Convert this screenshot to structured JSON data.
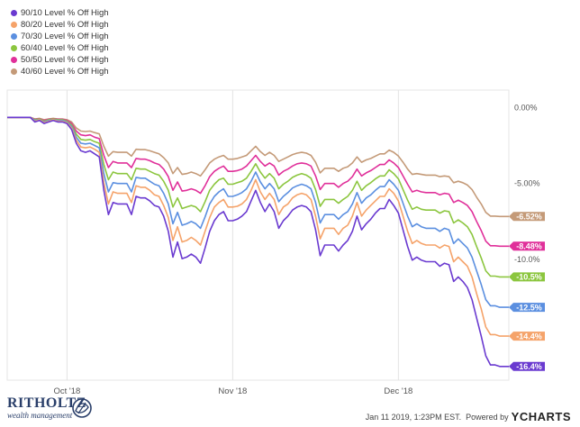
{
  "chart_data": {
    "type": "line",
    "x_ticks": [
      "Oct '18",
      "Nov '18",
      "Dec '18"
    ],
    "y_ticks": [
      "0.00%",
      "-5.00%",
      "-10.0%"
    ],
    "y_ticks_values": [
      0,
      -5,
      -10
    ],
    "ylim": [
      -17.3,
      1.8
    ],
    "grid": "vertical",
    "legend_placement": "top-left",
    "series": [
      {
        "name": "90/10 Level % Off High",
        "color": "#6a3ad0",
        "end_label": "-16.4%",
        "values": [
          0,
          0,
          0,
          0,
          0,
          0,
          -0.3,
          -0.2,
          -0.4,
          -0.3,
          -0.2,
          -0.3,
          -0.3,
          -0.4,
          -0.8,
          -1.7,
          -2.2,
          -2.3,
          -2.2,
          -2.4,
          -2.6,
          -4.8,
          -6.4,
          -5.6,
          -5.7,
          -5.7,
          -5.7,
          -6.4,
          -5.2,
          -5.3,
          -5.3,
          -5.5,
          -5.8,
          -5.9,
          -6.5,
          -7.5,
          -9.2,
          -8.2,
          -9.3,
          -9.2,
          -9.0,
          -9.2,
          -9.6,
          -8.6,
          -7.5,
          -6.8,
          -6.4,
          -6.2,
          -6.8,
          -6.8,
          -6.7,
          -6.5,
          -6.2,
          -5.5,
          -4.8,
          -5.6,
          -6.2,
          -5.7,
          -6.2,
          -7.3,
          -6.8,
          -6.5,
          -6.1,
          -5.9,
          -5.8,
          -5.9,
          -6.2,
          -7.4,
          -9.1,
          -8.4,
          -8.4,
          -8.4,
          -8.8,
          -8.4,
          -8.1,
          -7.5,
          -6.5,
          -7.4,
          -7.0,
          -6.7,
          -6.3,
          -6.0,
          -6.0,
          -5.4,
          -5.8,
          -6.3,
          -7.4,
          -8.5,
          -9.4,
          -9.2,
          -9.4,
          -9.5,
          -9.5,
          -9.5,
          -9.8,
          -9.6,
          -9.7,
          -10.8,
          -10.5,
          -10.8,
          -11.2,
          -12.0,
          -13.2,
          -14.4,
          -15.7,
          -16.3,
          -16.3,
          -16.4,
          -16.4,
          -16.4
        ]
      },
      {
        "name": "80/20 Level % Off High",
        "color": "#f5a36a",
        "end_label": "-14.4%",
        "values": [
          0,
          0,
          0,
          0,
          0,
          0,
          -0.25,
          -0.15,
          -0.35,
          -0.25,
          -0.15,
          -0.25,
          -0.25,
          -0.35,
          -0.7,
          -1.5,
          -1.95,
          -2.0,
          -1.95,
          -2.1,
          -2.3,
          -4.3,
          -5.7,
          -4.9,
          -5.0,
          -5.0,
          -5.0,
          -5.6,
          -4.5,
          -4.6,
          -4.6,
          -4.8,
          -5.1,
          -5.2,
          -5.8,
          -6.6,
          -8.1,
          -7.2,
          -8.2,
          -8.1,
          -7.9,
          -8.1,
          -8.4,
          -7.5,
          -6.6,
          -5.9,
          -5.6,
          -5.4,
          -5.9,
          -5.9,
          -5.85,
          -5.7,
          -5.4,
          -4.8,
          -4.1,
          -4.9,
          -5.4,
          -5.0,
          -5.4,
          -6.4,
          -5.9,
          -5.7,
          -5.3,
          -5.1,
          -5.0,
          -5.1,
          -5.4,
          -6.5,
          -8.0,
          -7.3,
          -7.3,
          -7.3,
          -7.7,
          -7.3,
          -7.1,
          -6.5,
          -5.6,
          -6.5,
          -6.1,
          -5.8,
          -5.5,
          -5.2,
          -5.2,
          -4.7,
          -5.0,
          -5.5,
          -6.5,
          -7.5,
          -8.3,
          -8.1,
          -8.3,
          -8.4,
          -8.4,
          -8.4,
          -8.6,
          -8.4,
          -8.5,
          -9.5,
          -9.2,
          -9.5,
          -9.8,
          -10.5,
          -11.6,
          -12.6,
          -13.8,
          -14.3,
          -14.3,
          -14.4,
          -14.4,
          -14.4
        ]
      },
      {
        "name": "70/30 Level % Off High",
        "color": "#5b8fe0",
        "end_label": "-12.5%",
        "values": [
          0,
          0,
          0,
          0,
          0,
          0,
          -0.2,
          -0.15,
          -0.3,
          -0.2,
          -0.15,
          -0.2,
          -0.2,
          -0.3,
          -0.6,
          -1.3,
          -1.7,
          -1.75,
          -1.7,
          -1.85,
          -2.0,
          -3.7,
          -4.9,
          -4.3,
          -4.35,
          -4.35,
          -4.35,
          -4.9,
          -3.95,
          -4.0,
          -4.0,
          -4.2,
          -4.4,
          -4.5,
          -5.0,
          -5.7,
          -7.0,
          -6.25,
          -7.1,
          -7.0,
          -6.85,
          -7.0,
          -7.3,
          -6.55,
          -5.7,
          -5.2,
          -4.9,
          -4.7,
          -5.2,
          -5.2,
          -5.1,
          -4.95,
          -4.7,
          -4.2,
          -3.6,
          -4.25,
          -4.7,
          -4.35,
          -4.7,
          -5.55,
          -5.2,
          -4.95,
          -4.65,
          -4.5,
          -4.4,
          -4.5,
          -4.7,
          -5.6,
          -6.95,
          -6.4,
          -6.4,
          -6.4,
          -6.7,
          -6.4,
          -6.2,
          -5.7,
          -4.95,
          -5.65,
          -5.3,
          -5.1,
          -4.8,
          -4.55,
          -4.55,
          -4.1,
          -4.4,
          -4.8,
          -5.65,
          -6.5,
          -7.2,
          -7.0,
          -7.2,
          -7.3,
          -7.3,
          -7.3,
          -7.5,
          -7.3,
          -7.4,
          -8.3,
          -8.0,
          -8.3,
          -8.6,
          -9.2,
          -10.1,
          -11.0,
          -12.0,
          -12.4,
          -12.4,
          -12.5,
          -12.5,
          -12.5
        ]
      },
      {
        "name": "60/40 Level % Off High",
        "color": "#8cc63f",
        "end_label": "-10.5%",
        "values": [
          0,
          0,
          0,
          0,
          0,
          0,
          -0.15,
          -0.1,
          -0.25,
          -0.15,
          -0.1,
          -0.15,
          -0.15,
          -0.25,
          -0.5,
          -1.1,
          -1.45,
          -1.5,
          -1.45,
          -1.6,
          -1.7,
          -3.1,
          -4.1,
          -3.6,
          -3.7,
          -3.7,
          -3.7,
          -4.1,
          -3.35,
          -3.4,
          -3.4,
          -3.55,
          -3.7,
          -3.8,
          -4.2,
          -4.8,
          -5.9,
          -5.3,
          -6.0,
          -5.9,
          -5.8,
          -5.9,
          -6.2,
          -5.55,
          -4.8,
          -4.4,
          -4.1,
          -4.0,
          -4.4,
          -4.4,
          -4.3,
          -4.2,
          -4.0,
          -3.55,
          -3.05,
          -3.6,
          -4.0,
          -3.7,
          -4.0,
          -4.7,
          -4.4,
          -4.2,
          -3.95,
          -3.8,
          -3.7,
          -3.8,
          -4.0,
          -4.75,
          -5.85,
          -5.4,
          -5.4,
          -5.4,
          -5.65,
          -5.4,
          -5.2,
          -4.8,
          -4.2,
          -4.8,
          -4.5,
          -4.3,
          -4.05,
          -3.85,
          -3.85,
          -3.45,
          -3.7,
          -4.05,
          -4.75,
          -5.45,
          -6.05,
          -5.9,
          -6.05,
          -6.1,
          -6.1,
          -6.1,
          -6.3,
          -6.15,
          -6.2,
          -6.95,
          -6.75,
          -6.95,
          -7.2,
          -7.7,
          -8.5,
          -9.25,
          -10.1,
          -10.45,
          -10.45,
          -10.5,
          -10.5,
          -10.5
        ]
      },
      {
        "name": "50/50 Level % Off High",
        "color": "#e0309a",
        "end_label": "-8.48%",
        "values": [
          0,
          0,
          0,
          0,
          0,
          0,
          -0.12,
          -0.08,
          -0.2,
          -0.12,
          -0.08,
          -0.12,
          -0.12,
          -0.2,
          -0.4,
          -0.9,
          -1.15,
          -1.2,
          -1.15,
          -1.3,
          -1.4,
          -2.5,
          -3.3,
          -2.9,
          -3.0,
          -3.0,
          -3.0,
          -3.3,
          -2.7,
          -2.75,
          -2.75,
          -2.85,
          -3.0,
          -3.1,
          -3.4,
          -3.9,
          -4.8,
          -4.25,
          -4.85,
          -4.8,
          -4.7,
          -4.8,
          -5.0,
          -4.5,
          -3.9,
          -3.55,
          -3.35,
          -3.2,
          -3.55,
          -3.55,
          -3.5,
          -3.4,
          -3.2,
          -2.85,
          -2.5,
          -2.9,
          -3.2,
          -3.0,
          -3.2,
          -3.8,
          -3.55,
          -3.4,
          -3.2,
          -3.05,
          -3.0,
          -3.05,
          -3.2,
          -3.85,
          -4.75,
          -4.35,
          -4.35,
          -4.35,
          -4.6,
          -4.35,
          -4.2,
          -3.9,
          -3.4,
          -3.85,
          -3.65,
          -3.5,
          -3.3,
          -3.1,
          -3.1,
          -2.8,
          -3.0,
          -3.3,
          -3.85,
          -4.4,
          -4.9,
          -4.8,
          -4.9,
          -4.95,
          -4.95,
          -4.95,
          -5.1,
          -5.0,
          -5.05,
          -5.6,
          -5.45,
          -5.6,
          -5.8,
          -6.2,
          -6.85,
          -7.45,
          -8.15,
          -8.45,
          -8.45,
          -8.48,
          -8.48,
          -8.48
        ]
      },
      {
        "name": "40/60 Level % Off High",
        "color": "#c49a78",
        "end_label": "-6.52%",
        "values": [
          0,
          0,
          0,
          0,
          0,
          0,
          -0.1,
          -0.06,
          -0.15,
          -0.1,
          -0.06,
          -0.1,
          -0.1,
          -0.15,
          -0.3,
          -0.7,
          -0.9,
          -0.93,
          -0.9,
          -1.0,
          -1.08,
          -1.9,
          -2.55,
          -2.25,
          -2.3,
          -2.3,
          -2.3,
          -2.55,
          -2.1,
          -2.12,
          -2.12,
          -2.2,
          -2.3,
          -2.4,
          -2.65,
          -3.0,
          -3.7,
          -3.3,
          -3.75,
          -3.7,
          -3.6,
          -3.7,
          -3.85,
          -3.45,
          -3.0,
          -2.75,
          -2.6,
          -2.5,
          -2.75,
          -2.75,
          -2.7,
          -2.6,
          -2.5,
          -2.2,
          -1.9,
          -2.25,
          -2.5,
          -2.3,
          -2.5,
          -2.9,
          -2.75,
          -2.6,
          -2.45,
          -2.35,
          -2.3,
          -2.35,
          -2.5,
          -2.95,
          -3.65,
          -3.35,
          -3.35,
          -3.35,
          -3.55,
          -3.35,
          -3.25,
          -3.0,
          -2.6,
          -2.95,
          -2.8,
          -2.7,
          -2.55,
          -2.4,
          -2.4,
          -2.15,
          -2.3,
          -2.55,
          -2.95,
          -3.4,
          -3.75,
          -3.7,
          -3.75,
          -3.8,
          -3.8,
          -3.8,
          -3.9,
          -3.85,
          -3.9,
          -4.3,
          -4.2,
          -4.3,
          -4.45,
          -4.75,
          -5.25,
          -5.7,
          -6.25,
          -6.5,
          -6.5,
          -6.52,
          -6.52,
          -6.52
        ]
      }
    ]
  },
  "footer": {
    "logo_title": "RITHOLTZ",
    "logo_subtitle": "wealth management",
    "timestamp": "Jan 11 2019, 1:23PM EST.",
    "powered_by": "Powered by",
    "brand": "YCHARTS"
  }
}
